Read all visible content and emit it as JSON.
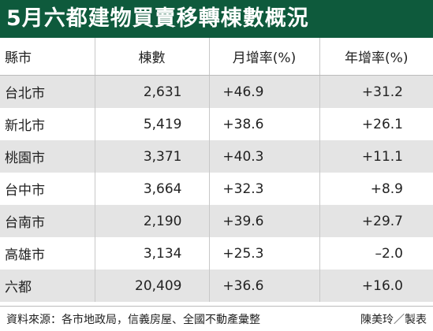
{
  "header": {
    "title": "5月六都建物買賣移轉棟數概況"
  },
  "table": {
    "columns": [
      "縣市",
      "棟數",
      "月增率(%)",
      "年增率(%)"
    ],
    "rows": [
      [
        "台北市",
        "2,631",
        "+46.9",
        "+31.2"
      ],
      [
        "新北市",
        "5,419",
        "+38.6",
        "+26.1"
      ],
      [
        "桃園市",
        "3,371",
        "+40.3",
        "+11.1"
      ],
      [
        "台中市",
        "3,664",
        "+32.3",
        "+8.9"
      ],
      [
        "台南市",
        "2,190",
        "+39.6",
        "+29.7"
      ],
      [
        "高雄市",
        "3,134",
        "+25.3",
        "–2.0"
      ],
      [
        "六都",
        "20,409",
        "+36.6",
        "+16.0"
      ]
    ]
  },
  "footer": {
    "source": "資料來源：各市地政局，信義房屋、全國不動產彙整",
    "author": "陳美玲／製表"
  }
}
